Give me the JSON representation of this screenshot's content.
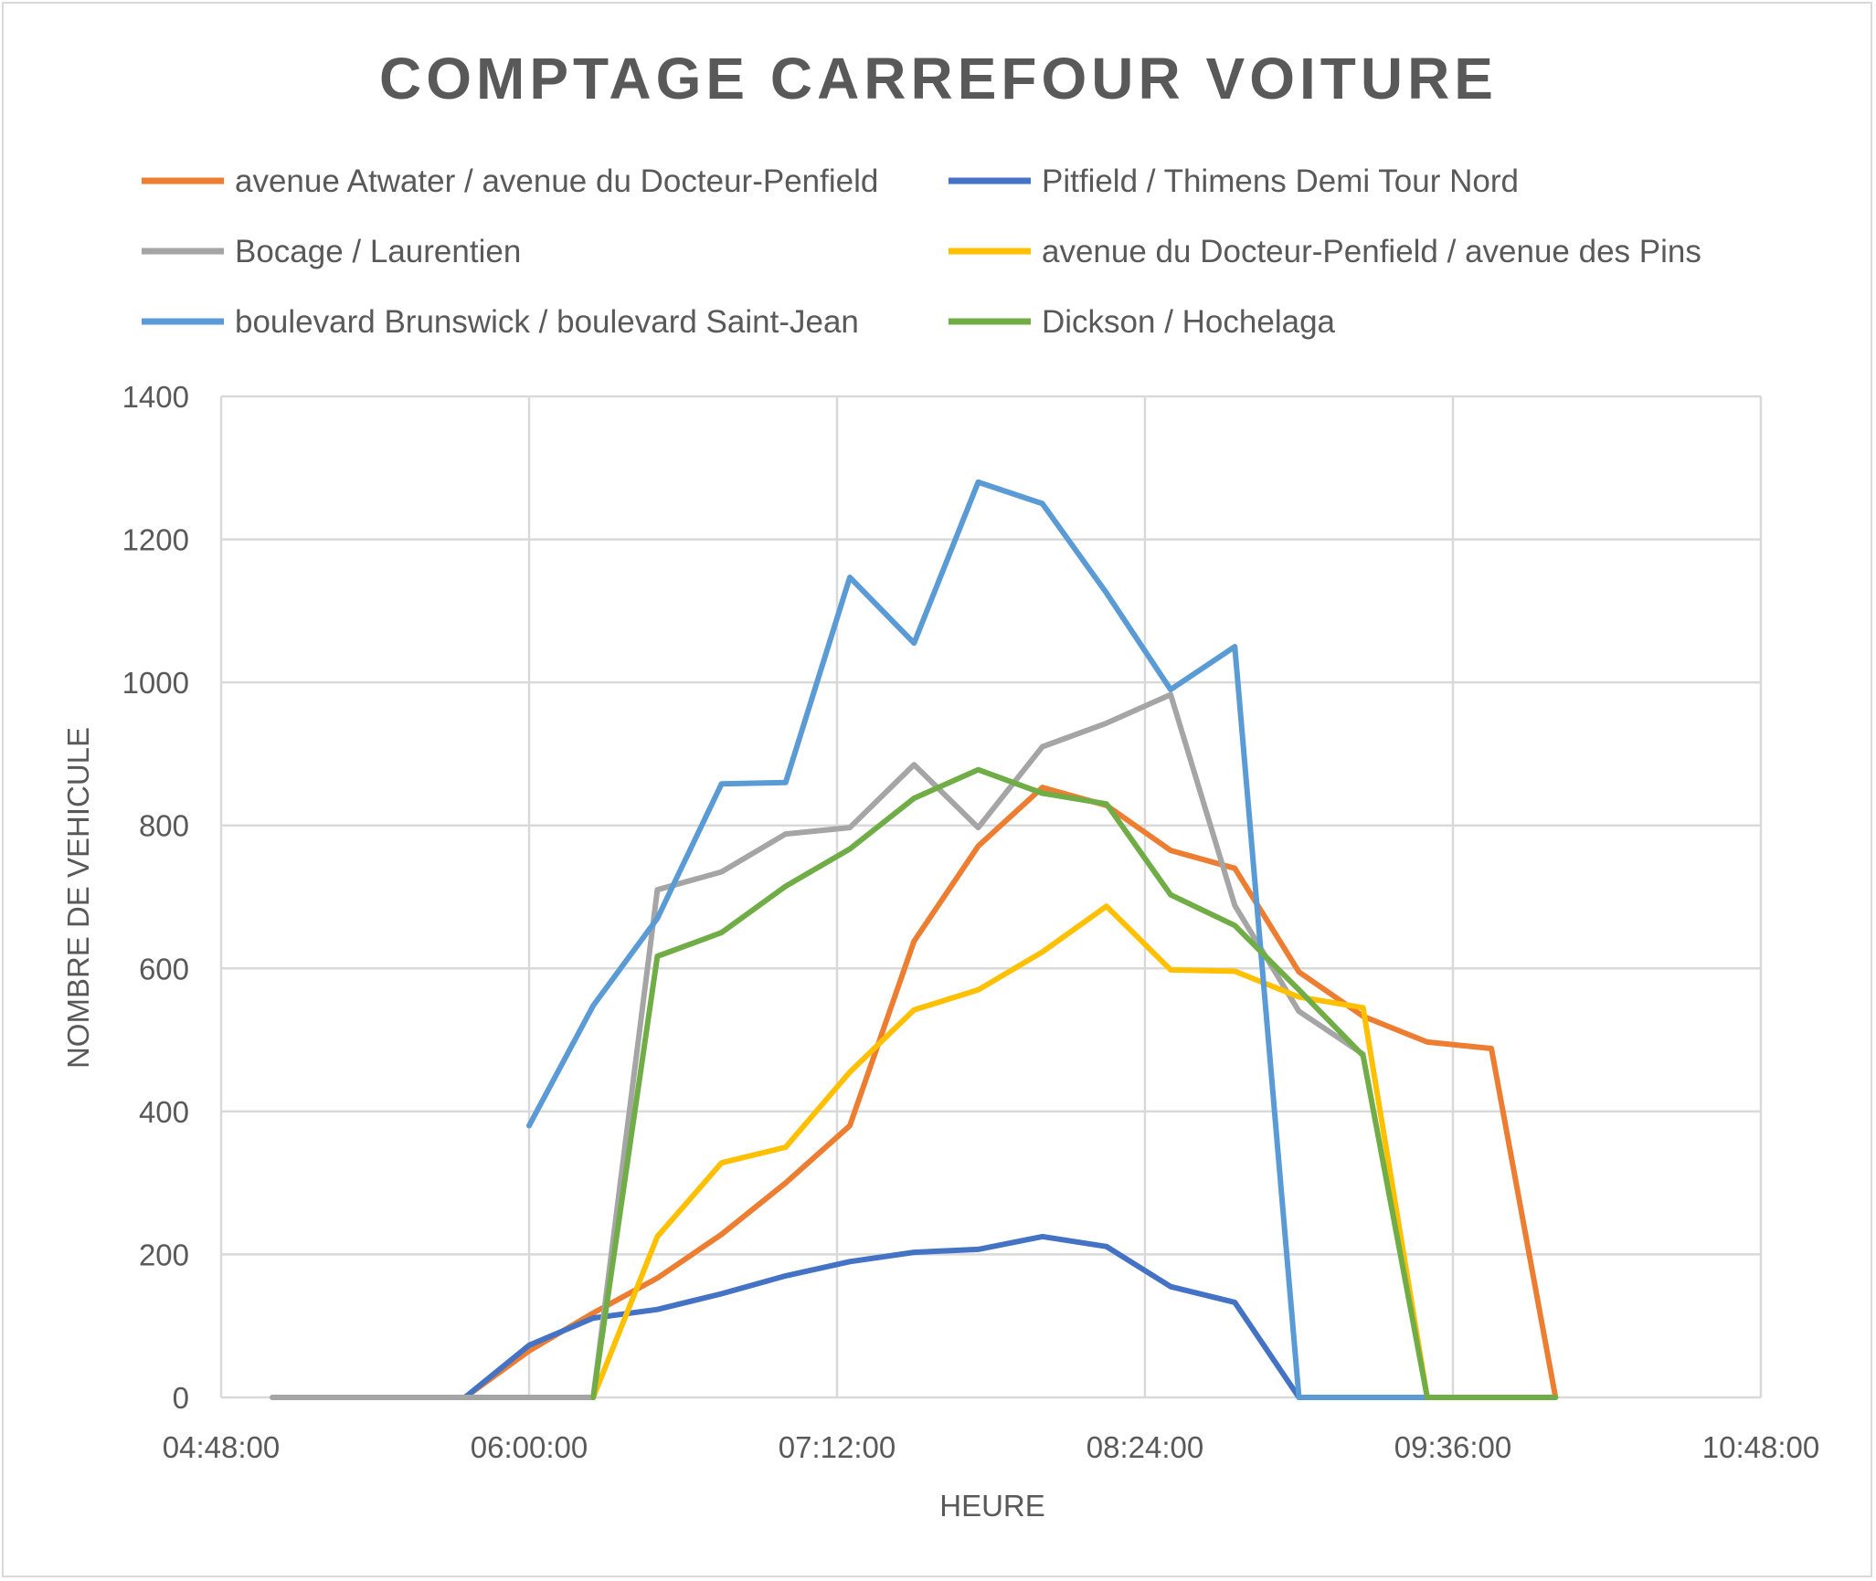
{
  "chart_data": {
    "type": "line",
    "title": "COMPTAGE CARREFOUR VOITURE",
    "xlabel": "HEURE",
    "ylabel": "NOMBRE DE VEHICULE",
    "xlim": [
      "04:48:00",
      "10:48:00"
    ],
    "ylim": [
      0,
      1400
    ],
    "x_ticks": [
      "04:48:00",
      "06:00:00",
      "07:12:00",
      "08:24:00",
      "09:36:00",
      "10:48:00"
    ],
    "y_ticks": [
      "0",
      "200",
      "400",
      "600",
      "800",
      "1000",
      "1200",
      "1400"
    ],
    "grid": true,
    "legend_position": "top",
    "series": [
      {
        "name": "avenue Atwater / avenue du Docteur-Penfield",
        "color": "#ED7D31",
        "points": [
          [
            "05:00:00",
            0
          ],
          [
            "05:15:00",
            0
          ],
          [
            "05:30:00",
            0
          ],
          [
            "05:45:00",
            0
          ],
          [
            "06:00:00",
            65
          ],
          [
            "06:15:00",
            118
          ],
          [
            "06:30:00",
            167
          ],
          [
            "06:45:00",
            228
          ],
          [
            "07:00:00",
            300
          ],
          [
            "07:15:00",
            380
          ],
          [
            "07:30:00",
            638
          ],
          [
            "07:45:00",
            771
          ],
          [
            "08:00:00",
            853
          ],
          [
            "08:15:00",
            828
          ],
          [
            "08:30:00",
            765
          ],
          [
            "08:45:00",
            740
          ],
          [
            "09:00:00",
            595
          ],
          [
            "09:15:00",
            533
          ],
          [
            "09:30:00",
            497
          ],
          [
            "09:45:00",
            488
          ],
          [
            "10:00:00",
            0
          ]
        ]
      },
      {
        "name": "Pitfield / Thimens Demi Tour Nord",
        "color": "#4472C4",
        "points": [
          [
            "05:45:00",
            0
          ],
          [
            "06:00:00",
            73
          ],
          [
            "06:15:00",
            111
          ],
          [
            "06:30:00",
            123
          ],
          [
            "06:45:00",
            145
          ],
          [
            "07:00:00",
            170
          ],
          [
            "07:15:00",
            190
          ],
          [
            "07:30:00",
            203
          ],
          [
            "07:45:00",
            207
          ],
          [
            "08:00:00",
            225
          ],
          [
            "08:15:00",
            211
          ],
          [
            "08:30:00",
            155
          ],
          [
            "08:45:00",
            133
          ],
          [
            "09:00:00",
            0
          ]
        ]
      },
      {
        "name": "Bocage / Laurentien",
        "color": "#A5A5A5",
        "points": [
          [
            "05:00:00",
            0
          ],
          [
            "05:15:00",
            0
          ],
          [
            "05:30:00",
            0
          ],
          [
            "05:45:00",
            0
          ],
          [
            "06:00:00",
            0
          ],
          [
            "06:15:00",
            0
          ],
          [
            "06:30:00",
            710
          ],
          [
            "06:45:00",
            735
          ],
          [
            "07:00:00",
            788
          ],
          [
            "07:15:00",
            797
          ],
          [
            "07:30:00",
            885
          ],
          [
            "07:45:00",
            797
          ],
          [
            "08:00:00",
            910
          ],
          [
            "08:15:00",
            943
          ],
          [
            "08:30:00",
            983
          ],
          [
            "08:45:00",
            688
          ],
          [
            "09:00:00",
            540
          ],
          [
            "09:15:00",
            480
          ]
        ]
      },
      {
        "name": "avenue du Docteur-Penfield / avenue des Pins",
        "color": "#FFC000",
        "points": [
          [
            "06:15:00",
            0
          ],
          [
            "06:30:00",
            225
          ],
          [
            "06:45:00",
            328
          ],
          [
            "07:00:00",
            350
          ],
          [
            "07:15:00",
            455
          ],
          [
            "07:30:00",
            542
          ],
          [
            "07:45:00",
            570
          ],
          [
            "08:00:00",
            623
          ],
          [
            "08:15:00",
            687
          ],
          [
            "08:30:00",
            598
          ],
          [
            "08:45:00",
            596
          ],
          [
            "09:00:00",
            560
          ],
          [
            "09:15:00",
            545
          ],
          [
            "09:30:00",
            0
          ],
          [
            "09:45:00",
            0
          ],
          [
            "10:00:00",
            0
          ]
        ]
      },
      {
        "name": "boulevard Brunswick / boulevard Saint-Jean",
        "color": "#5B9BD5",
        "points": [
          [
            "06:00:00",
            380
          ],
          [
            "06:15:00",
            548
          ],
          [
            "06:30:00",
            670
          ],
          [
            "06:45:00",
            858
          ],
          [
            "07:00:00",
            860
          ],
          [
            "07:15:00",
            1147
          ],
          [
            "07:30:00",
            1055
          ],
          [
            "07:45:00",
            1280
          ],
          [
            "08:00:00",
            1250
          ],
          [
            "08:15:00",
            1125
          ],
          [
            "08:30:00",
            990
          ],
          [
            "08:45:00",
            1050
          ],
          [
            "09:00:00",
            0
          ],
          [
            "09:15:00",
            0
          ],
          [
            "09:30:00",
            0
          ]
        ]
      },
      {
        "name": "Dickson / Hochelaga",
        "color": "#70AD47",
        "points": [
          [
            "06:15:00",
            0
          ],
          [
            "06:30:00",
            617
          ],
          [
            "06:45:00",
            650
          ],
          [
            "07:00:00",
            715
          ],
          [
            "07:15:00",
            767
          ],
          [
            "07:30:00",
            838
          ],
          [
            "07:45:00",
            878
          ],
          [
            "08:00:00",
            845
          ],
          [
            "08:15:00",
            830
          ],
          [
            "08:30:00",
            703
          ],
          [
            "08:45:00",
            660
          ],
          [
            "09:00:00",
            570
          ],
          [
            "09:15:00",
            478
          ],
          [
            "09:30:00",
            0
          ],
          [
            "09:45:00",
            0
          ],
          [
            "10:00:00",
            0
          ]
        ]
      }
    ]
  }
}
